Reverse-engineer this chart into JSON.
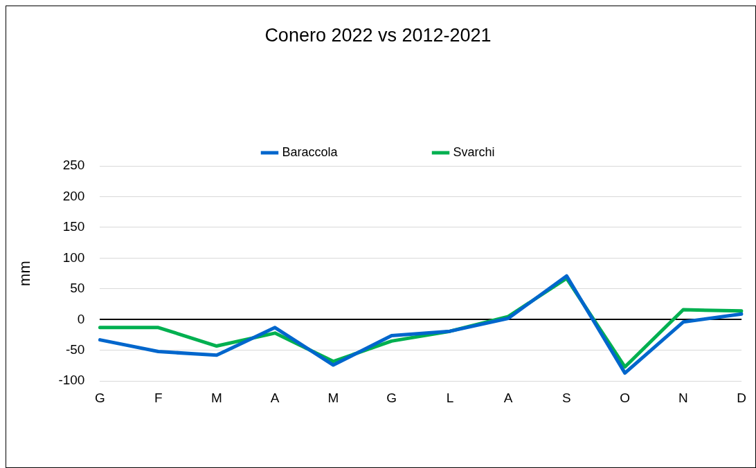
{
  "chart_data": {
    "type": "line",
    "title": "Conero 2022 vs 2012-2021",
    "ylabel": "mm",
    "categories": [
      "G",
      "F",
      "M",
      "A",
      "M",
      "G",
      "L",
      "A",
      "S",
      "O",
      "N",
      "D"
    ],
    "series": [
      {
        "name": "Baraccola",
        "color": "#0066cc",
        "values": [
          -33,
          -52,
          -58,
          -13,
          -74,
          -26,
          -19,
          2,
          71,
          -87,
          -4,
          9
        ]
      },
      {
        "name": "Svarchi",
        "color": "#00b050",
        "values": [
          -13,
          -13,
          -43,
          -22,
          -68,
          -35,
          -19,
          5,
          67,
          -77,
          16,
          14
        ]
      }
    ],
    "ylim": [
      -100,
      250
    ],
    "yticks": [
      -100,
      -50,
      0,
      50,
      100,
      150,
      200,
      250
    ],
    "grid": "y",
    "legend": "top",
    "marker": "none",
    "line_style": "solid"
  }
}
